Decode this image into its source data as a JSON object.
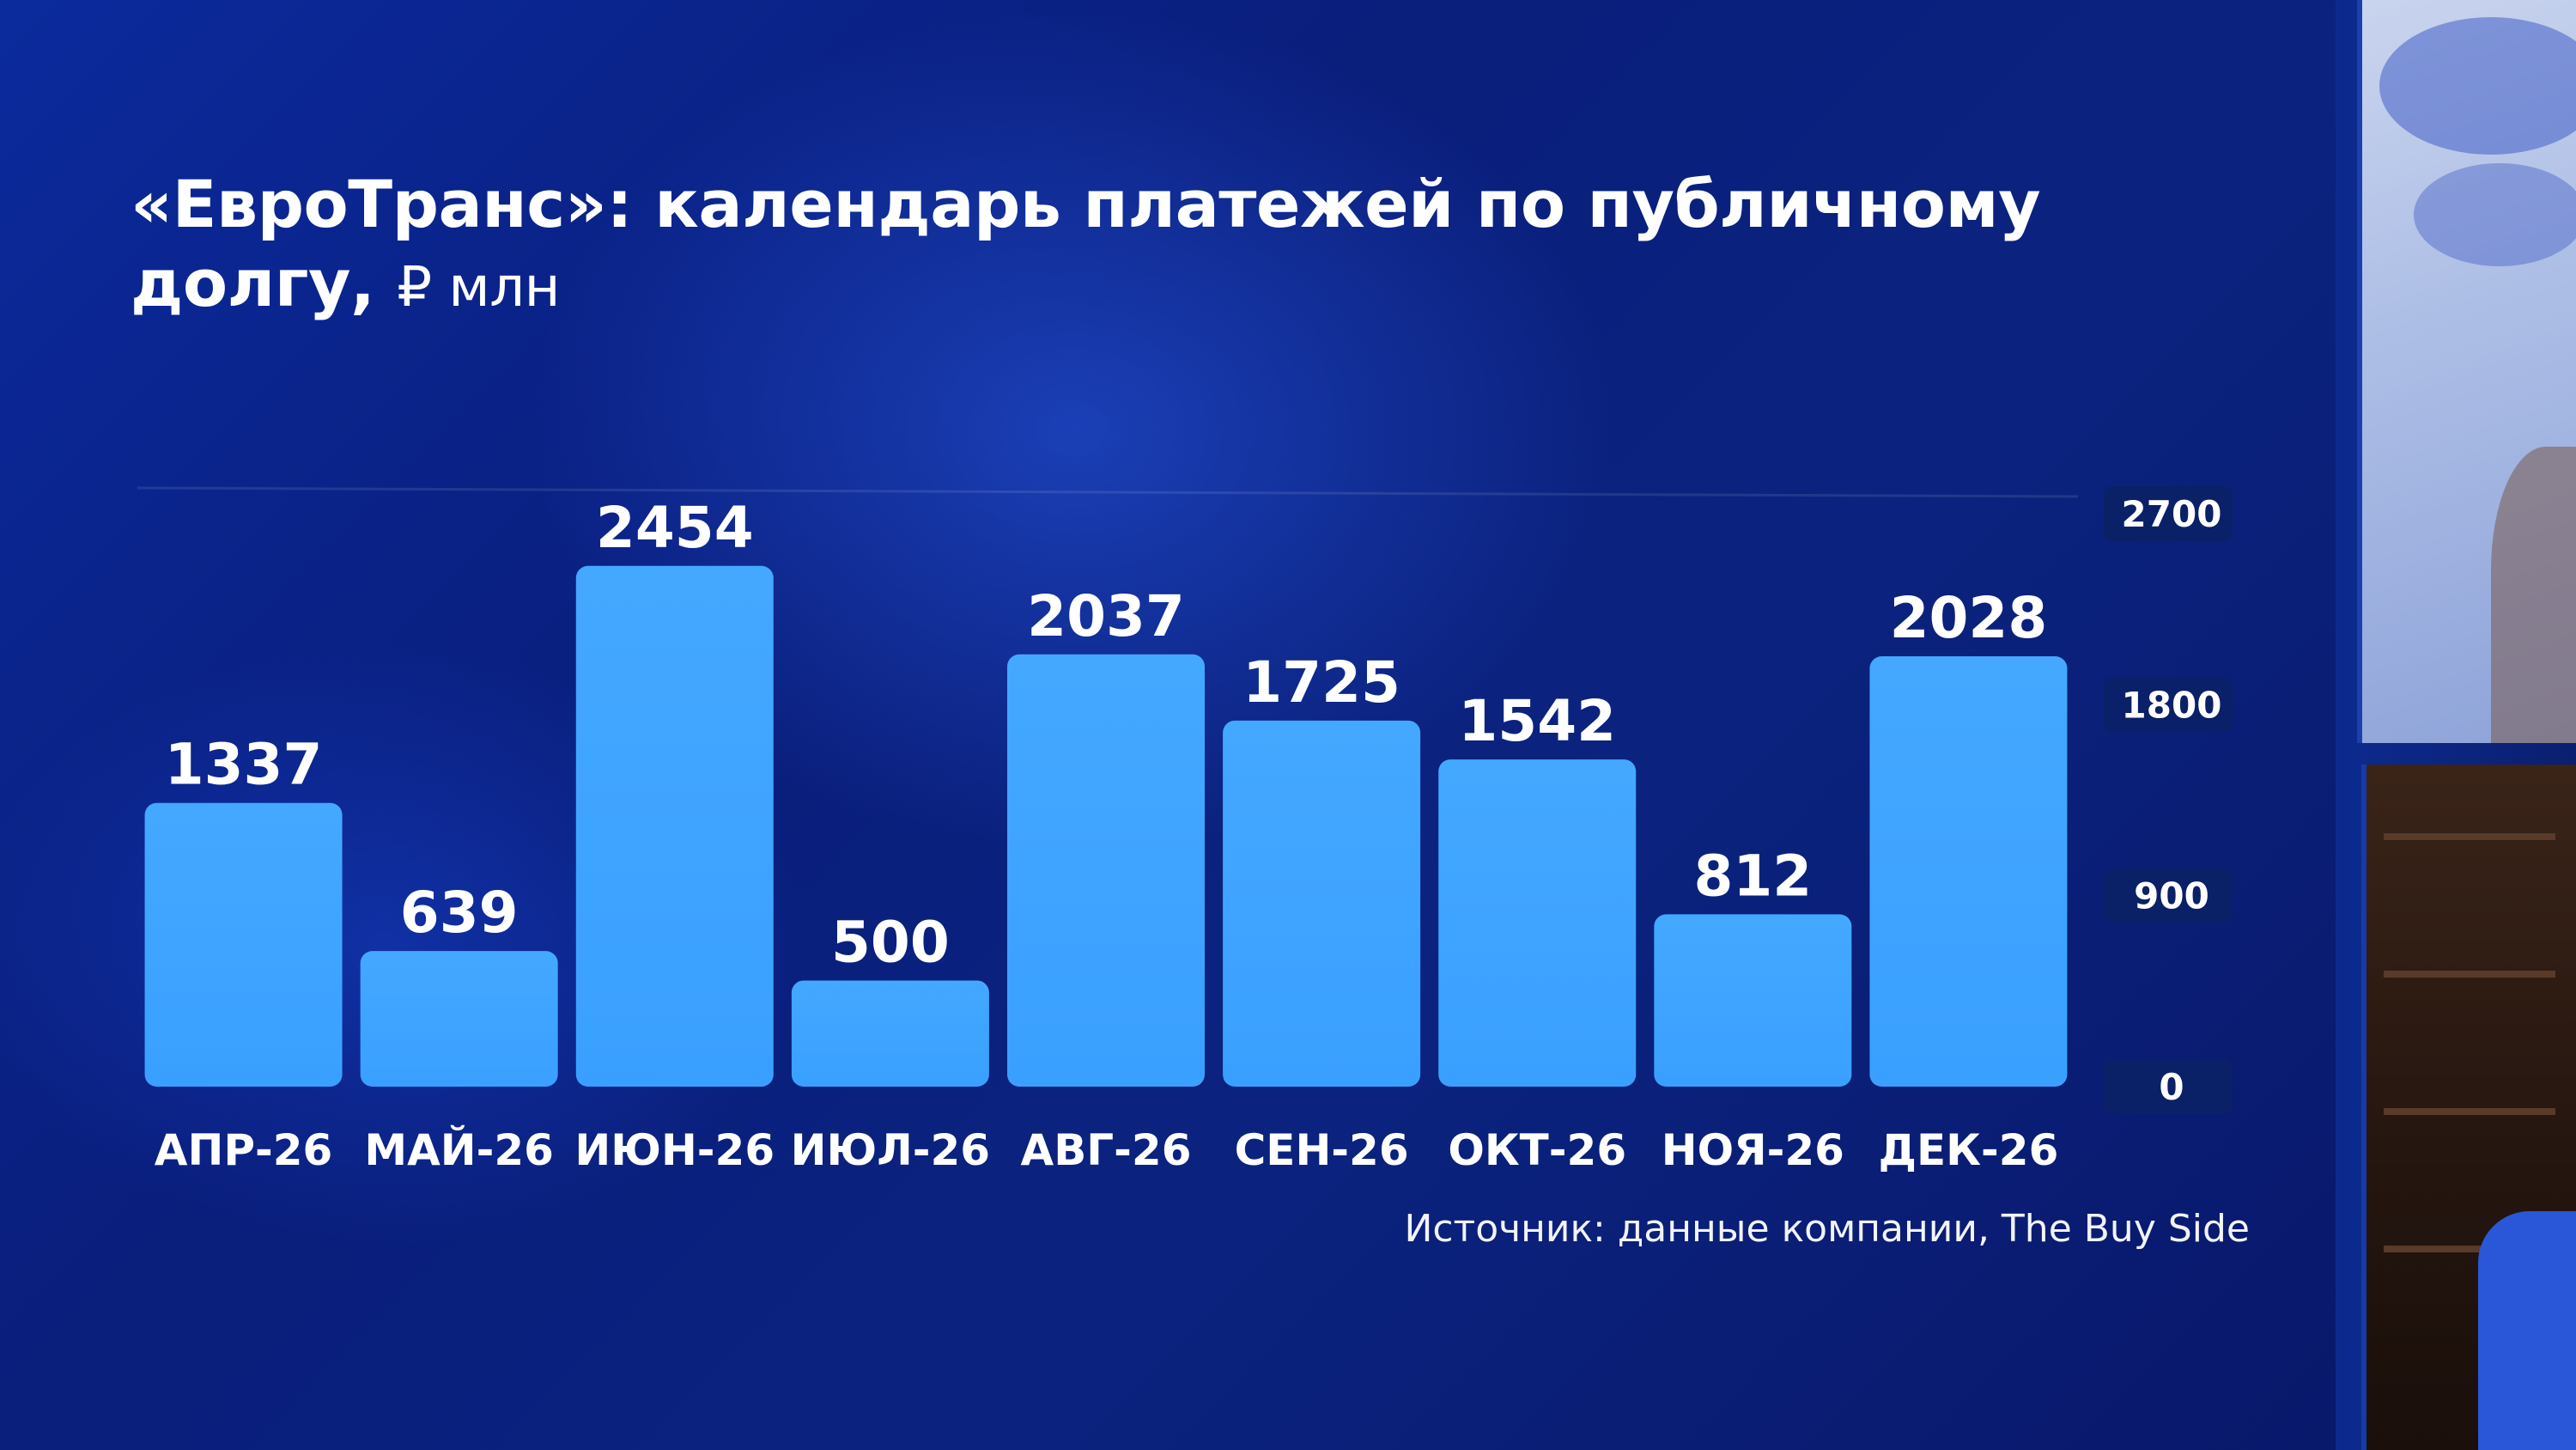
{
  "title": {
    "main": "«ЕвроТранс»: календарь платежей по публичному долгу,",
    "unit": "₽ млн"
  },
  "source": "Источник: данные компании, The Buy Side",
  "colors": {
    "bar": "#3aa0ff",
    "bar_top": "#44a8ff",
    "background": "#0b2a9c",
    "tick_badge": "#0b2165",
    "text": "#ffffff"
  },
  "chart_data": {
    "type": "bar",
    "categories": [
      "АПР-26",
      "МАЙ-26",
      "ИЮН-26",
      "ИЮЛ-26",
      "АВГ-26",
      "СЕН-26",
      "ОКТ-26",
      "НОЯ-26",
      "ДЕК-26"
    ],
    "values": [
      1337,
      639,
      2454,
      500,
      2037,
      1725,
      1542,
      812,
      2028
    ],
    "data_labels": [
      "1337",
      "639",
      "2454",
      "500",
      "2037",
      "1725",
      "1542",
      "812",
      "2028"
    ],
    "ylim": [
      0,
      2700
    ],
    "yticks": [
      0,
      900,
      1800,
      2700
    ],
    "ytick_labels": [
      "0",
      "900",
      "1800",
      "2700"
    ],
    "y_axis_position": "right",
    "grid": false,
    "xlabel": "",
    "ylabel": ""
  }
}
